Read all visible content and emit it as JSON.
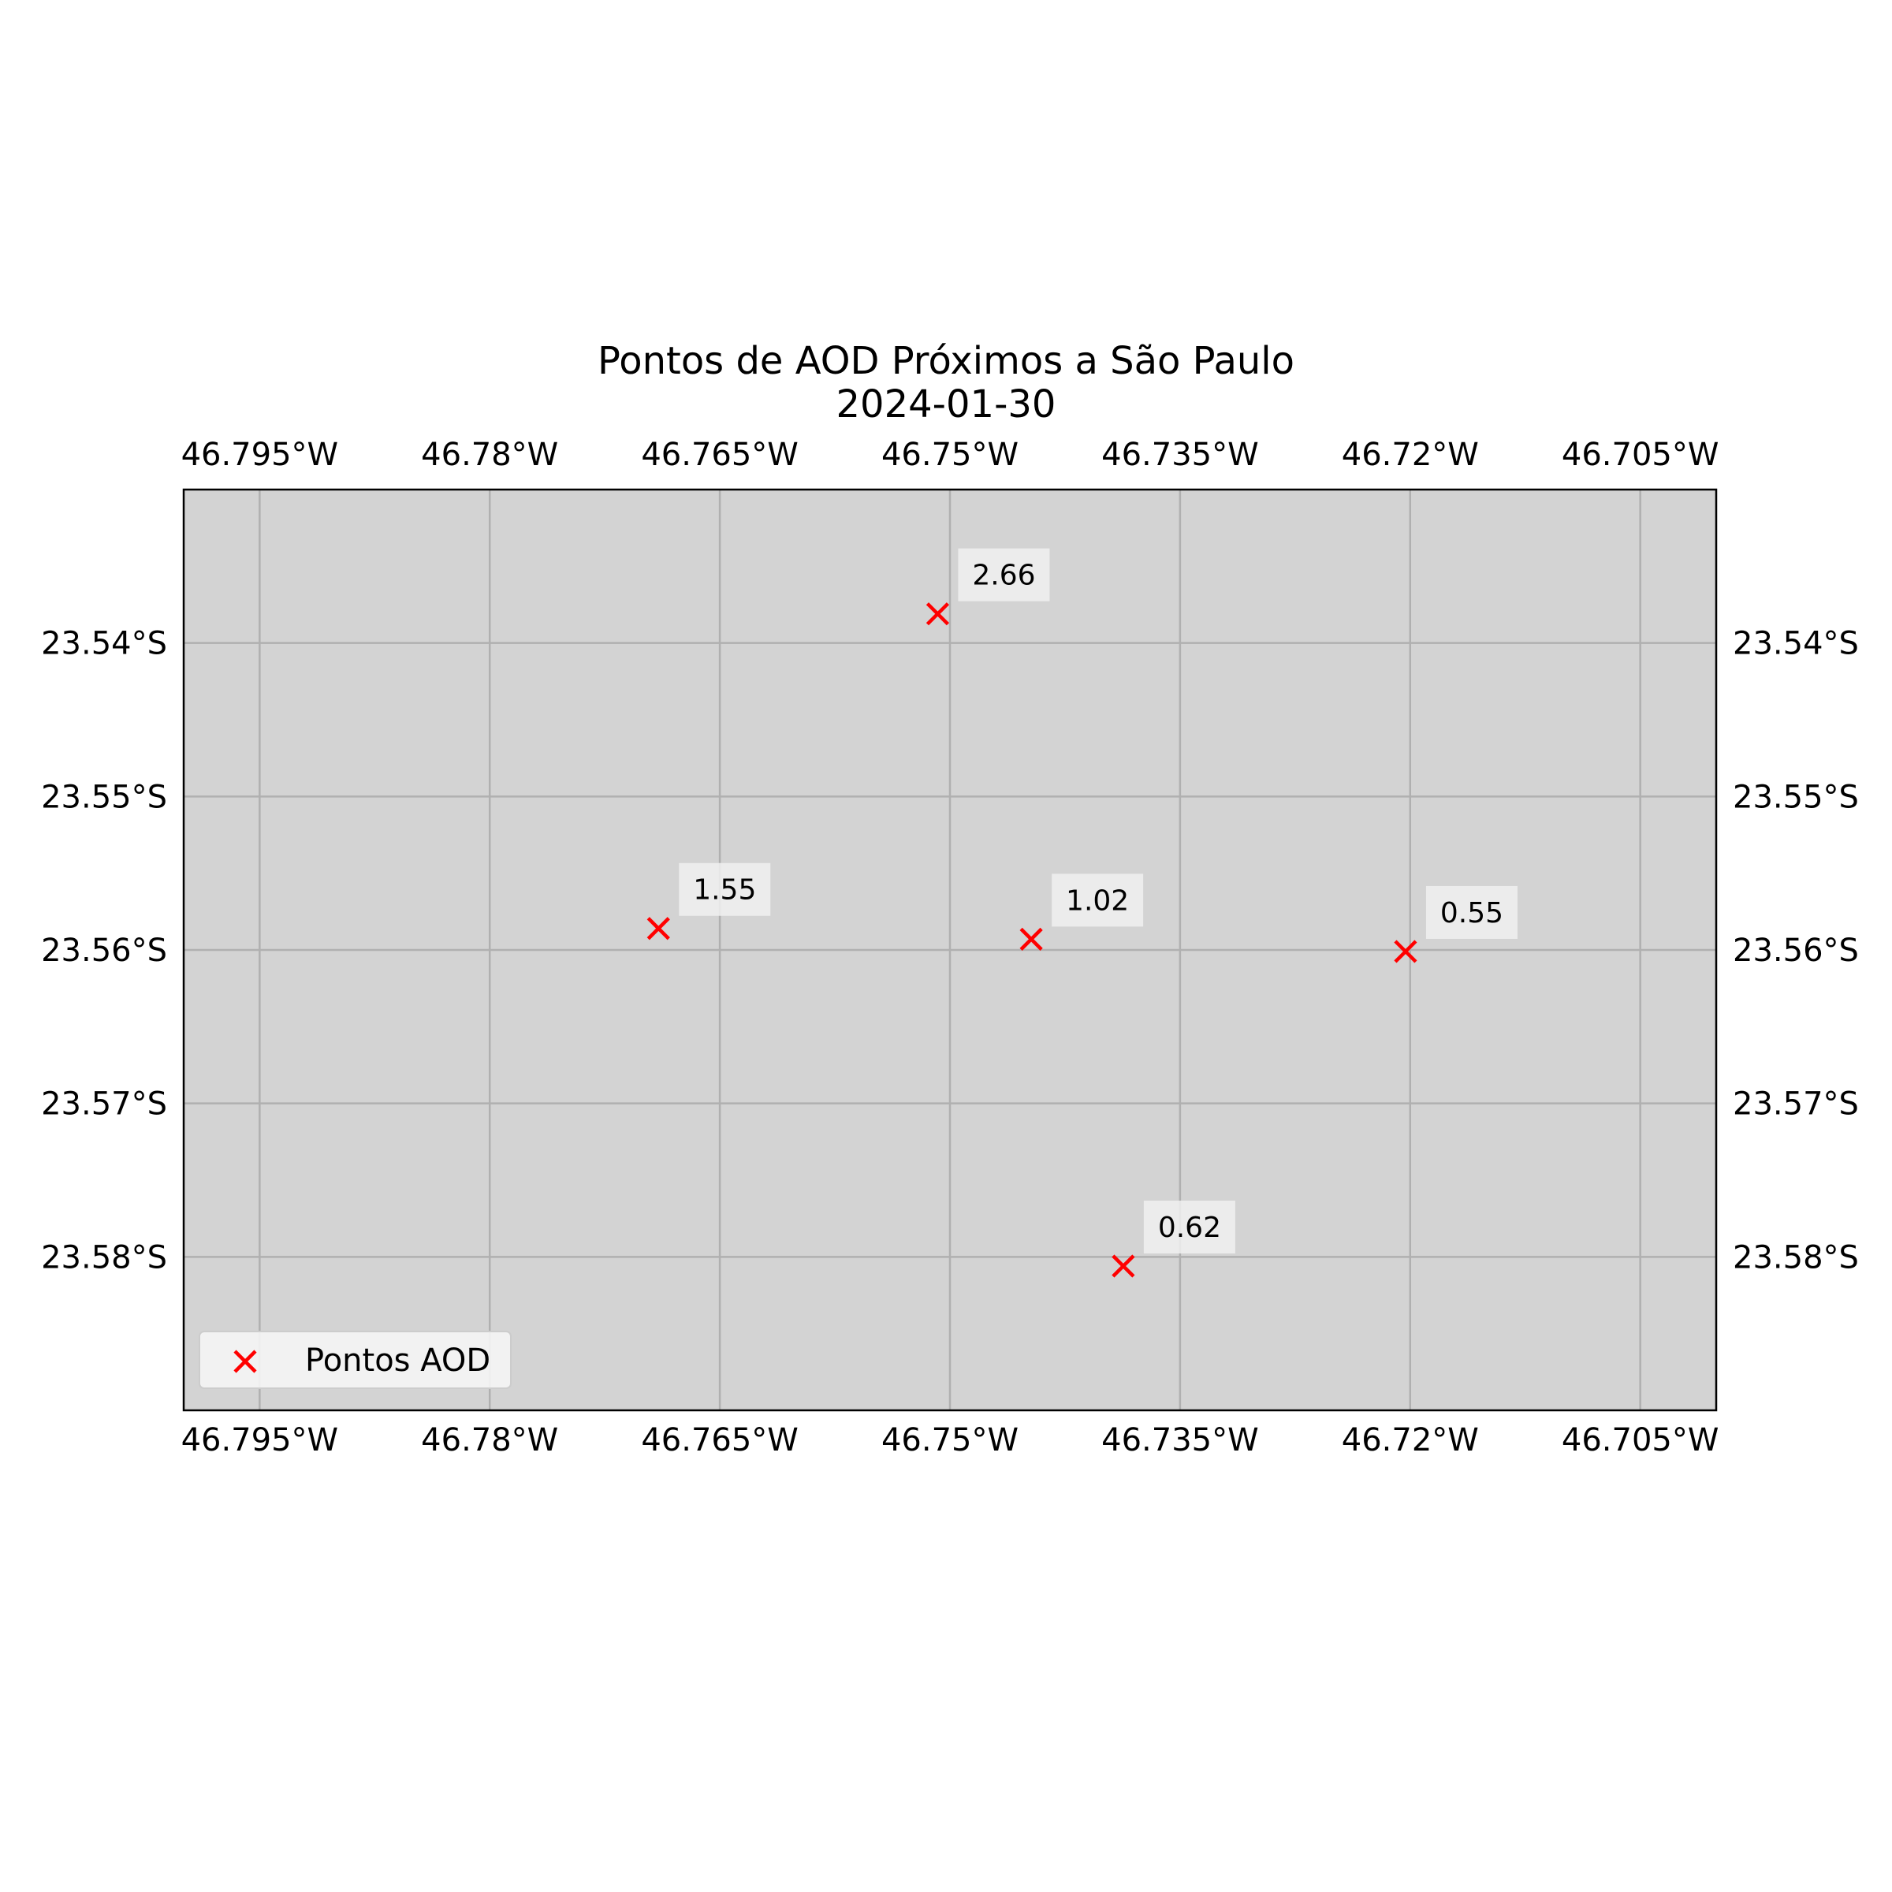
{
  "title": "Pontos de AOD Próximos a São Paulo",
  "subtitle": "2024-01-30",
  "chart_data": {
    "type": "scatter",
    "x_ticks": [
      {
        "value": -46.795,
        "label": "46.795°W"
      },
      {
        "value": -46.78,
        "label": "46.78°W"
      },
      {
        "value": -46.765,
        "label": "46.765°W"
      },
      {
        "value": -46.75,
        "label": "46.75°W"
      },
      {
        "value": -46.735,
        "label": "46.735°W"
      },
      {
        "value": -46.72,
        "label": "46.72°W"
      },
      {
        "value": -46.705,
        "label": "46.705°W"
      }
    ],
    "y_ticks": [
      {
        "value": -23.54,
        "label": "23.54°S"
      },
      {
        "value": -23.55,
        "label": "23.55°S"
      },
      {
        "value": -23.56,
        "label": "23.56°S"
      },
      {
        "value": -23.57,
        "label": "23.57°S"
      },
      {
        "value": -23.58,
        "label": "23.58°S"
      }
    ],
    "xlim": [
      -46.79995,
      -46.70005
    ],
    "ylim": [
      -23.59,
      -23.53
    ],
    "grid": true,
    "legend_position": "lower-left",
    "series": [
      {
        "name": "Pontos AOD",
        "marker": "x",
        "color": "#ff0000",
        "points": [
          {
            "lon": -46.7508,
            "lat": -23.5381,
            "label": "2.66"
          },
          {
            "lon": -46.769,
            "lat": -23.5586,
            "label": "1.55"
          },
          {
            "lon": -46.7447,
            "lat": -23.5593,
            "label": "1.02"
          },
          {
            "lon": -46.7203,
            "lat": -23.5601,
            "label": "0.55"
          },
          {
            "lon": -46.7387,
            "lat": -23.5806,
            "label": "0.62"
          }
        ]
      }
    ]
  },
  "colors": {
    "plot_background": "#d3d3d3",
    "grid": "#b0b0b0",
    "marker": "#ff0000",
    "label_box": "#f0f0f0"
  }
}
